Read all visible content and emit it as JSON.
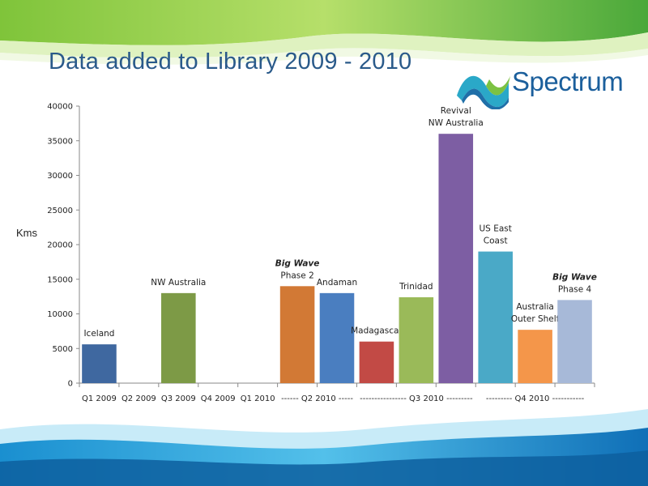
{
  "slide": {
    "title": "Data added to Library 2009 - 2010"
  },
  "logo": {
    "text": "Spectrum"
  },
  "chart_data": {
    "type": "bar",
    "ylabel": "Kms",
    "ylim": [
      0,
      40000
    ],
    "yticks": [
      "0",
      "5000",
      "10000",
      "15000",
      "20000",
      "25000",
      "30000",
      "35000",
      "40000"
    ],
    "categories": [
      "Q1 2009",
      "Q2 2009",
      "Q3 2009",
      "Q4 2009",
      "Q1 2010",
      "Q2 2010a",
      "Q2 2010b",
      "Q3 2010a",
      "Q3 2010b",
      "Q3 2010c",
      "Q4 2010a",
      "Q4 2010b",
      "Q4 2010c"
    ],
    "xtick_labels": [
      {
        "text": "Q1 2009",
        "slot": 0,
        "span": 1
      },
      {
        "text": "Q2 2009",
        "slot": 1,
        "span": 1
      },
      {
        "text": "Q3 2009",
        "slot": 2,
        "span": 1
      },
      {
        "text": "Q4 2009",
        "slot": 3,
        "span": 1
      },
      {
        "text": "Q1 2010",
        "slot": 4,
        "span": 1
      },
      {
        "text": "------ Q2 2010 -----",
        "slot": 5,
        "span": 2
      },
      {
        "text": "---------------- Q3 2010 ---------",
        "slot": 7,
        "span": 3
      },
      {
        "text": "--------- Q4 2010 -----------",
        "slot": 10,
        "span": 3
      }
    ],
    "bars": [
      {
        "slot": 0,
        "value": 5600,
        "color": "#3f68a0",
        "label": [
          "Iceland"
        ],
        "italic_first": false
      },
      {
        "slot": 2,
        "value": 13000,
        "color": "#7d9a46",
        "label": [
          "NW Australia"
        ],
        "italic_first": false
      },
      {
        "slot": 5,
        "value": 14000,
        "color": "#d27935",
        "label": [
          "Big Wave",
          "Phase 2"
        ],
        "italic_first": true
      },
      {
        "slot": 6,
        "value": 13000,
        "color": "#4a7ec0",
        "label": [
          "Andaman"
        ],
        "italic_first": false
      },
      {
        "slot": 7,
        "value": 6000,
        "color": "#c24a45",
        "label": [
          "Madagascar"
        ],
        "italic_first": false
      },
      {
        "slot": 8,
        "value": 12400,
        "color": "#9aba59",
        "label": [
          "Trinidad"
        ],
        "italic_first": false
      },
      {
        "slot": 9,
        "value": 36000,
        "color": "#7d5ea3",
        "label": [
          "Revival",
          "NW Australia"
        ],
        "italic_first": false
      },
      {
        "slot": 10,
        "value": 19000,
        "color": "#4aa9c7",
        "label": [
          "US East",
          "Coast"
        ],
        "italic_first": false
      },
      {
        "slot": 11,
        "value": 7700,
        "color": "#f4964a",
        "label": [
          "Australia",
          "Outer Shelf"
        ],
        "italic_first": false
      },
      {
        "slot": 12,
        "value": 12000,
        "color": "#a7b9d8",
        "label": [
          "Big Wave",
          "Phase 4"
        ],
        "italic_first": true
      }
    ]
  }
}
